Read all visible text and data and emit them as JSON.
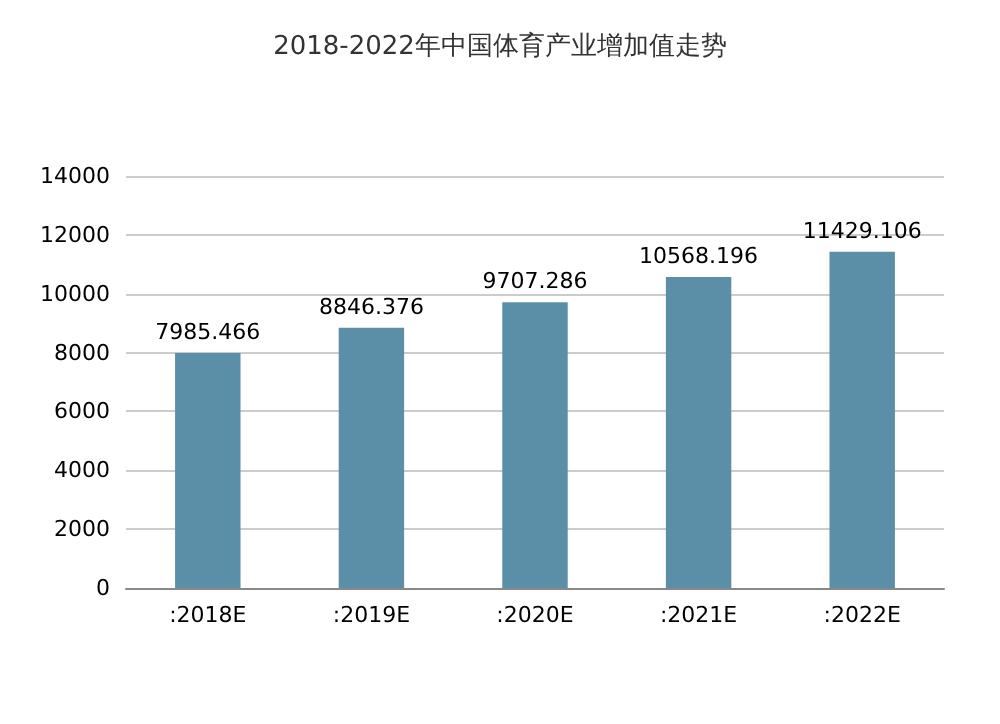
{
  "chart_data": {
    "type": "bar",
    "title": "2018-2022年中国体育产业增加值走势",
    "categories": [
      ":2018E",
      ":2019E",
      ":2020E",
      ":2021E",
      ":2022E"
    ],
    "values": [
      7985.466,
      8846.376,
      9707.286,
      10568.196,
      11429.106
    ],
    "color": "#5b8fa8",
    "ylim": [
      0,
      14000
    ],
    "yticks": [
      0,
      2000,
      4000,
      6000,
      8000,
      10000,
      12000,
      14000
    ],
    "grid": "y",
    "data_labels": true
  }
}
